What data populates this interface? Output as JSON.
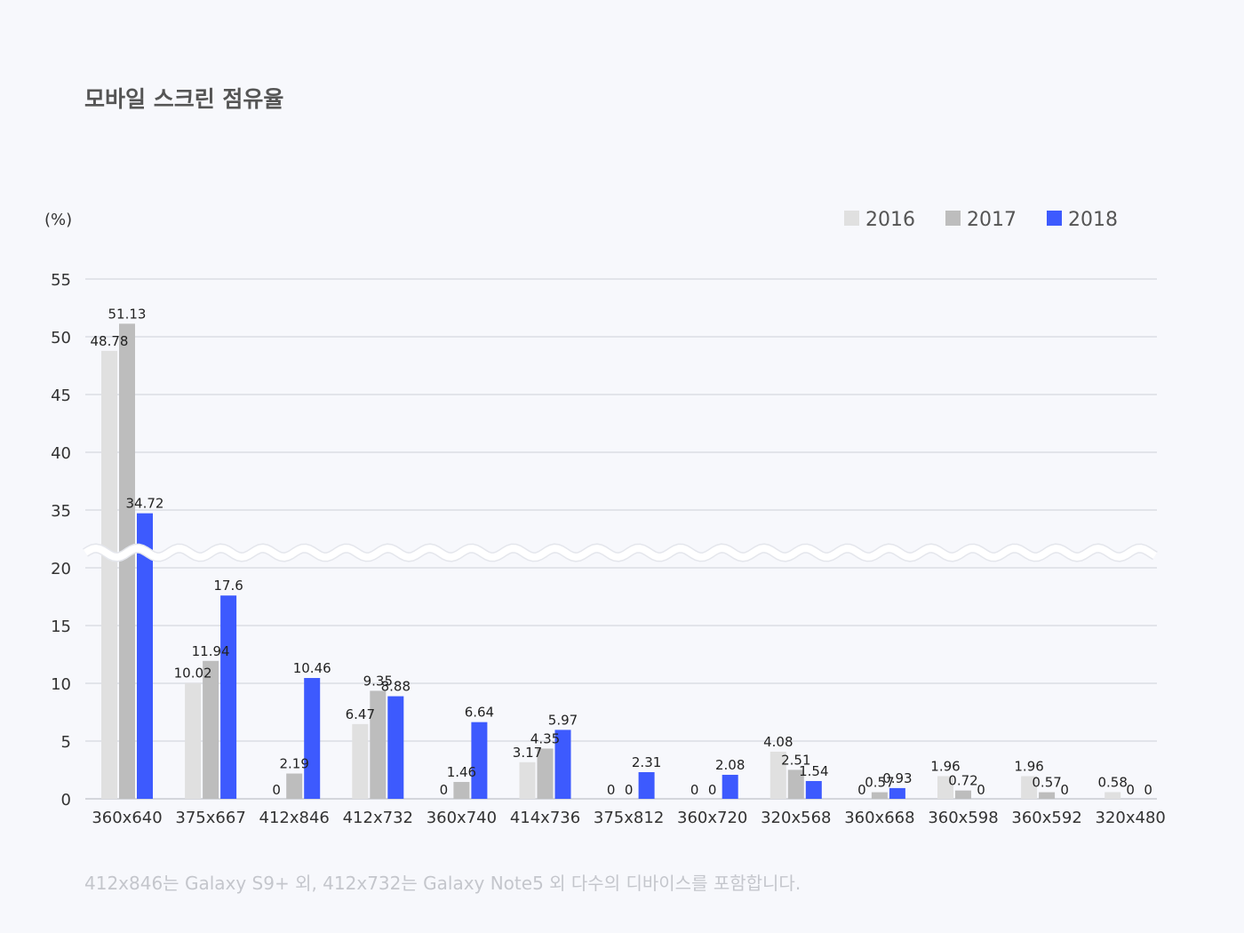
{
  "chart_data": {
    "type": "bar",
    "title": "모바일 스크린 점유율",
    "ylabel": "(%)",
    "xlabel": "",
    "ylim": [
      0,
      55
    ],
    "axis_break": [
      20,
      35
    ],
    "yticks": [
      0,
      5,
      10,
      15,
      20,
      35,
      40,
      45,
      50,
      55
    ],
    "grid": true,
    "legend_position": "top-right",
    "categories": [
      "360x640",
      "375x667",
      "412x846",
      "412x732",
      "360x740",
      "414x736",
      "375x812",
      "360x720",
      "320x568",
      "360x668",
      "360x598",
      "360x592",
      "320x480"
    ],
    "series": [
      {
        "name": "2016",
        "color": "#e0e0e0",
        "values": [
          48.78,
          10.02,
          0,
          6.47,
          0,
          3.17,
          0,
          0,
          4.08,
          0,
          1.96,
          1.96,
          0.58
        ]
      },
      {
        "name": "2017",
        "color": "#bdbdbd",
        "values": [
          51.13,
          11.94,
          2.19,
          9.35,
          1.46,
          4.35,
          0,
          0,
          2.51,
          0.57,
          0.72,
          0.57,
          0
        ]
      },
      {
        "name": "2018",
        "color": "#3d5afe",
        "values": [
          34.72,
          17.6,
          10.46,
          8.88,
          6.64,
          5.97,
          2.31,
          2.08,
          1.54,
          0.93,
          0,
          0,
          0
        ]
      }
    ]
  },
  "footnote": "412x846는 Galaxy S9+ 외, 412x732는 Galaxy Note5 외 다수의 디바이스를 포함합니다."
}
